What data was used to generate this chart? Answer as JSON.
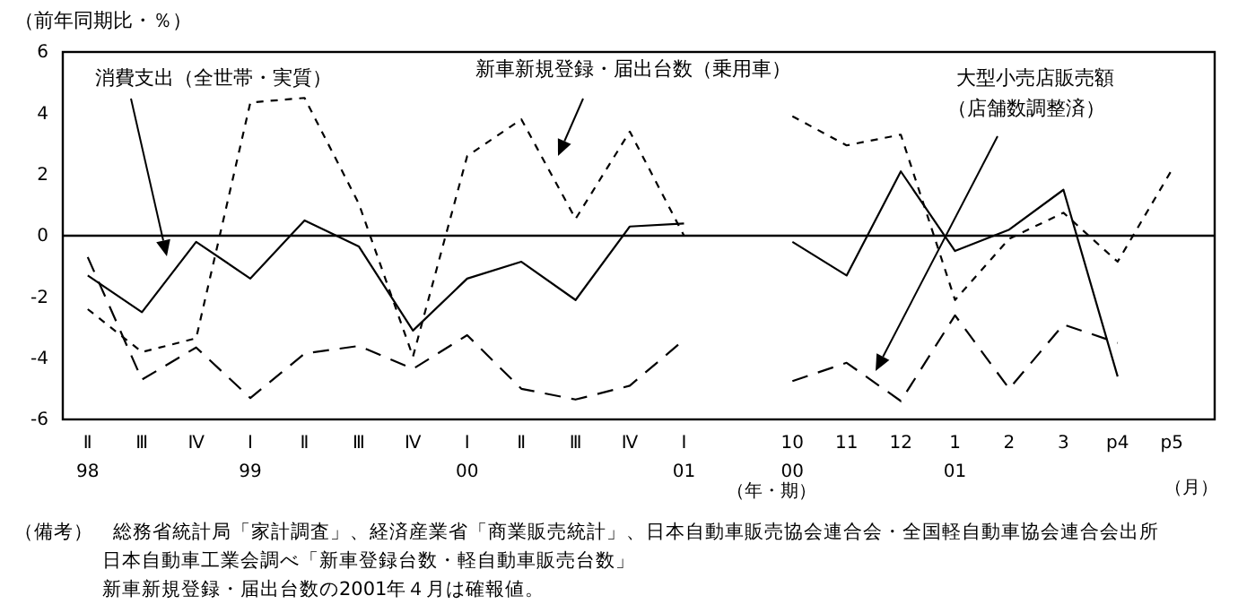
{
  "chart_data": {
    "type": "line",
    "ylabel": "（前年同期比・％）",
    "categories": [
      "Ⅱ\n98",
      "Ⅲ",
      "Ⅳ",
      "Ⅰ\n99",
      "Ⅱ",
      "Ⅲ",
      "Ⅳ",
      "Ⅰ\n00",
      "Ⅱ",
      "Ⅲ",
      "Ⅳ",
      "Ⅰ\n01",
      null,
      "10\n00",
      "11",
      "12",
      "1\n01",
      "2",
      "3",
      "p4",
      "p5"
    ],
    "series": [
      {
        "name": "消費支出（全世帯・実質）",
        "color": "#000000",
        "line_style": "solid",
        "values": [
          -1.3,
          -2.5,
          -0.2,
          -1.4,
          0.5,
          -0.35,
          -3.1,
          -1.4,
          -0.85,
          -2.1,
          0.3,
          0.4,
          null,
          -0.2,
          -1.3,
          2.1,
          -0.5,
          0.2,
          1.5,
          -4.6,
          null
        ]
      },
      {
        "name": "新車新規登録・届出台数（乗用車）",
        "color": "#000000",
        "line_style": "dotted",
        "values": [
          -2.4,
          -3.8,
          -3.35,
          4.35,
          4.5,
          1.05,
          -3.95,
          2.6,
          3.8,
          0.55,
          3.4,
          0,
          null,
          3.9,
          2.95,
          3.3,
          -2.1,
          -0.1,
          0.75,
          -0.85,
          2.15
        ]
      },
      {
        "name": "大型小売店販売額（店舗数調整済）",
        "color": "#000000",
        "line_style": "dashed",
        "values": [
          -0.7,
          -4.7,
          -3.65,
          -5.3,
          -3.85,
          -3.6,
          -4.35,
          -3.25,
          -5.0,
          -5.35,
          -4.9,
          -3.4,
          null,
          -4.75,
          -4.15,
          -5.4,
          -2.6,
          -5.0,
          -2.9,
          -3.5,
          null
        ]
      }
    ],
    "ylim": [
      -6,
      6
    ],
    "yticks": [
      -6,
      -4,
      -2,
      0,
      2,
      4,
      6
    ],
    "grid": false,
    "legend": false,
    "marker": "none",
    "ref_lines": [
      {
        "axis": "y",
        "value": 0,
        "color": "#000000"
      }
    ],
    "annotations": [
      "（年・期）",
      "（月）",
      "（備考）　総務省統計局「家計調査」、経済産業省「商業販売統計」、日本自動車販売協会連合会・全国軽自動車協会連合会出所",
      "日本自動車工業会調べ「新車登録台数・軽自動車販売台数」",
      "新車新規登録・届出台数の2001年４月は確報値。"
    ]
  }
}
